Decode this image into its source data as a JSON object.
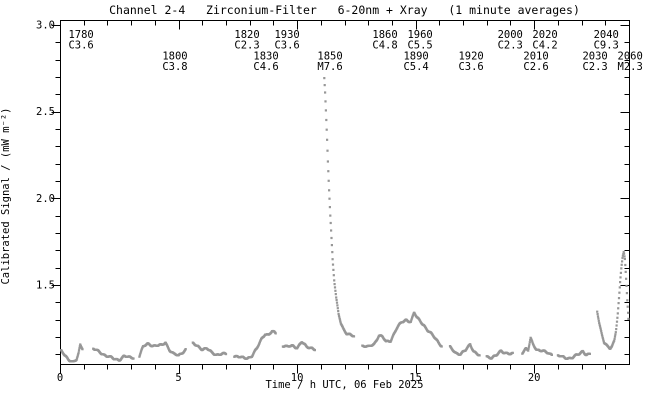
{
  "figure": {
    "title": "Channel 2-4   Zirconium-Filter   6-20nm + Xray   (1 minute averages)",
    "x_axis_label": "Time / h UTC, 06 Feb 2025",
    "y_axis_label": "Calibrated Signal / (mW m⁻²)"
  },
  "chart_data": {
    "type": "scatter",
    "title": "Channel 2-4 Zirconium-Filter 6-20nm + Xray (1 minute averages)",
    "xlabel": "Time / h UTC, 06 Feb 2025",
    "ylabel": "Calibrated Signal / (mW m-2)",
    "xlim": [
      0,
      24.0
    ],
    "ylim": [
      1.04,
      3.03
    ],
    "x_major_ticks": [
      0,
      5,
      10,
      15,
      20
    ],
    "x_minor_step_hours": 1,
    "y_major_ticks": [
      1.5,
      2.0,
      2.5,
      3.0
    ],
    "y_minor_step": 0.1,
    "grid": false,
    "legend": "none",
    "cadence_minutes": 1,
    "point_color": "#979797",
    "axis_color": "#000000",
    "background_color": "#ffffff",
    "series_segments": [
      [
        [
          0.05,
          1.12
        ],
        [
          0.2,
          1.09
        ],
        [
          0.35,
          1.07
        ],
        [
          0.55,
          1.06
        ],
        [
          0.7,
          1.07
        ],
        [
          0.78,
          1.1
        ],
        [
          0.85,
          1.15
        ],
        [
          0.95,
          1.13
        ]
      ],
      [
        [
          1.4,
          1.13
        ],
        [
          1.7,
          1.11
        ],
        [
          2.0,
          1.09
        ],
        [
          2.3,
          1.07
        ],
        [
          2.5,
          1.07
        ],
        [
          2.7,
          1.09
        ],
        [
          2.9,
          1.08
        ],
        [
          3.1,
          1.08
        ]
      ],
      [
        [
          3.35,
          1.09
        ],
        [
          3.5,
          1.14
        ],
        [
          3.7,
          1.16
        ],
        [
          4.0,
          1.15
        ],
        [
          4.3,
          1.15
        ],
        [
          4.45,
          1.17
        ],
        [
          4.6,
          1.13
        ],
        [
          4.8,
          1.1
        ],
        [
          5.0,
          1.09
        ],
        [
          5.15,
          1.11
        ],
        [
          5.3,
          1.13
        ]
      ],
      [
        [
          5.6,
          1.16
        ],
        [
          5.8,
          1.15
        ],
        [
          6.0,
          1.13
        ],
        [
          6.2,
          1.13
        ],
        [
          6.4,
          1.11
        ],
        [
          6.6,
          1.1
        ],
        [
          6.8,
          1.1
        ],
        [
          7.0,
          1.1
        ]
      ],
      [
        [
          7.35,
          1.09
        ],
        [
          7.6,
          1.08
        ],
        [
          7.9,
          1.08
        ],
        [
          8.1,
          1.09
        ],
        [
          8.3,
          1.13
        ],
        [
          8.5,
          1.19
        ],
        [
          8.65,
          1.22
        ],
        [
          8.8,
          1.21
        ],
        [
          8.95,
          1.23
        ],
        [
          9.1,
          1.22
        ]
      ],
      [
        [
          9.4,
          1.15
        ],
        [
          9.6,
          1.14
        ],
        [
          9.8,
          1.15
        ],
        [
          10.0,
          1.14
        ],
        [
          10.2,
          1.17
        ],
        [
          10.4,
          1.14
        ],
        [
          10.6,
          1.14
        ],
        [
          10.75,
          1.13
        ]
      ],
      [
        [
          11.15,
          2.69
        ],
        [
          11.18,
          2.62
        ],
        [
          11.22,
          2.5
        ],
        [
          11.26,
          2.37
        ],
        [
          11.3,
          2.22
        ],
        [
          11.35,
          2.05
        ],
        [
          11.4,
          1.9
        ],
        [
          11.45,
          1.77
        ],
        [
          11.5,
          1.65
        ],
        [
          11.57,
          1.52
        ],
        [
          11.65,
          1.42
        ],
        [
          11.75,
          1.33
        ],
        [
          11.85,
          1.28
        ],
        [
          11.95,
          1.25
        ],
        [
          12.1,
          1.22
        ],
        [
          12.25,
          1.21
        ],
        [
          12.4,
          1.2
        ]
      ],
      [
        [
          12.75,
          1.15
        ],
        [
          13.0,
          1.14
        ],
        [
          13.25,
          1.16
        ],
        [
          13.45,
          1.21
        ],
        [
          13.6,
          1.2
        ],
        [
          13.75,
          1.17
        ],
        [
          13.95,
          1.18
        ],
        [
          14.05,
          1.21
        ],
        [
          14.2,
          1.25
        ],
        [
          14.4,
          1.28
        ],
        [
          14.6,
          1.3
        ],
        [
          14.8,
          1.29
        ],
        [
          14.94,
          1.34
        ],
        [
          15.05,
          1.31
        ],
        [
          15.2,
          1.29
        ],
        [
          15.35,
          1.27
        ],
        [
          15.5,
          1.24
        ],
        [
          15.7,
          1.21
        ],
        [
          15.9,
          1.18
        ],
        [
          16.1,
          1.15
        ]
      ],
      [
        [
          16.45,
          1.14
        ],
        [
          16.7,
          1.11
        ],
        [
          16.9,
          1.1
        ],
        [
          17.1,
          1.12
        ],
        [
          17.3,
          1.16
        ],
        [
          17.45,
          1.12
        ],
        [
          17.6,
          1.1
        ],
        [
          17.7,
          1.09
        ]
      ],
      [
        [
          18.0,
          1.09
        ],
        [
          18.2,
          1.08
        ],
        [
          18.4,
          1.09
        ],
        [
          18.6,
          1.12
        ],
        [
          18.8,
          1.11
        ],
        [
          19.0,
          1.1
        ],
        [
          19.1,
          1.1
        ]
      ],
      [
        [
          19.5,
          1.11
        ],
        [
          19.65,
          1.13
        ],
        [
          19.75,
          1.12
        ],
        [
          19.85,
          1.19
        ],
        [
          19.95,
          1.16
        ],
        [
          20.1,
          1.13
        ],
        [
          20.3,
          1.12
        ],
        [
          20.5,
          1.11
        ],
        [
          20.75,
          1.1
        ]
      ],
      [
        [
          21.0,
          1.09
        ],
        [
          21.3,
          1.08
        ],
        [
          21.6,
          1.08
        ],
        [
          21.9,
          1.1
        ],
        [
          22.05,
          1.12
        ],
        [
          22.2,
          1.1
        ],
        [
          22.35,
          1.1
        ]
      ],
      [
        [
          22.66,
          1.35
        ],
        [
          22.75,
          1.28
        ],
        [
          22.85,
          1.22
        ],
        [
          22.95,
          1.17
        ],
        [
          23.1,
          1.14
        ],
        [
          23.2,
          1.13
        ],
        [
          23.3,
          1.15
        ],
        [
          23.38,
          1.18
        ],
        [
          23.45,
          1.24
        ],
        [
          23.52,
          1.33
        ],
        [
          23.58,
          1.43
        ],
        [
          23.63,
          1.52
        ],
        [
          23.68,
          1.6
        ],
        [
          23.73,
          1.66
        ],
        [
          23.78,
          1.69
        ],
        [
          23.83,
          1.64
        ],
        [
          23.88,
          1.52
        ],
        [
          23.93,
          1.4
        ],
        [
          23.98,
          1.3
        ]
      ]
    ],
    "flare_annotations": [
      {
        "id": "1780",
        "class": "C3.6",
        "hour": 0.89,
        "row": 1
      },
      {
        "id": "1800",
        "class": "C3.8",
        "hour": 4.85,
        "row": 2
      },
      {
        "id": "1820",
        "class": "C2.3",
        "hour": 7.89,
        "row": 1
      },
      {
        "id": "1830",
        "class": "C4.6",
        "hour": 8.69,
        "row": 2
      },
      {
        "id": "1930",
        "class": "C3.6",
        "hour": 9.58,
        "row": 1
      },
      {
        "id": "1850",
        "class": "M7.6",
        "hour": 11.39,
        "row": 2
      },
      {
        "id": "1860",
        "class": "C4.8",
        "hour": 13.71,
        "row": 1
      },
      {
        "id": "1890",
        "class": "C5.4",
        "hour": 15.02,
        "row": 2
      },
      {
        "id": "1960",
        "class": "C5.5",
        "hour": 15.19,
        "row": 1
      },
      {
        "id": "1920",
        "class": "C3.6",
        "hour": 17.34,
        "row": 2
      },
      {
        "id": "2000",
        "class": "C2.3",
        "hour": 18.99,
        "row": 1
      },
      {
        "id": "2010",
        "class": "C2.6",
        "hour": 20.08,
        "row": 2
      },
      {
        "id": "2020",
        "class": "C4.2",
        "hour": 20.46,
        "row": 1
      },
      {
        "id": "2030",
        "class": "C2.3",
        "hour": 22.57,
        "row": 2
      },
      {
        "id": "2040",
        "class": "C9.3",
        "hour": 23.04,
        "row": 1
      },
      {
        "id": "2060",
        "class": "M2.3",
        "hour": 24.05,
        "row": 2
      }
    ]
  }
}
